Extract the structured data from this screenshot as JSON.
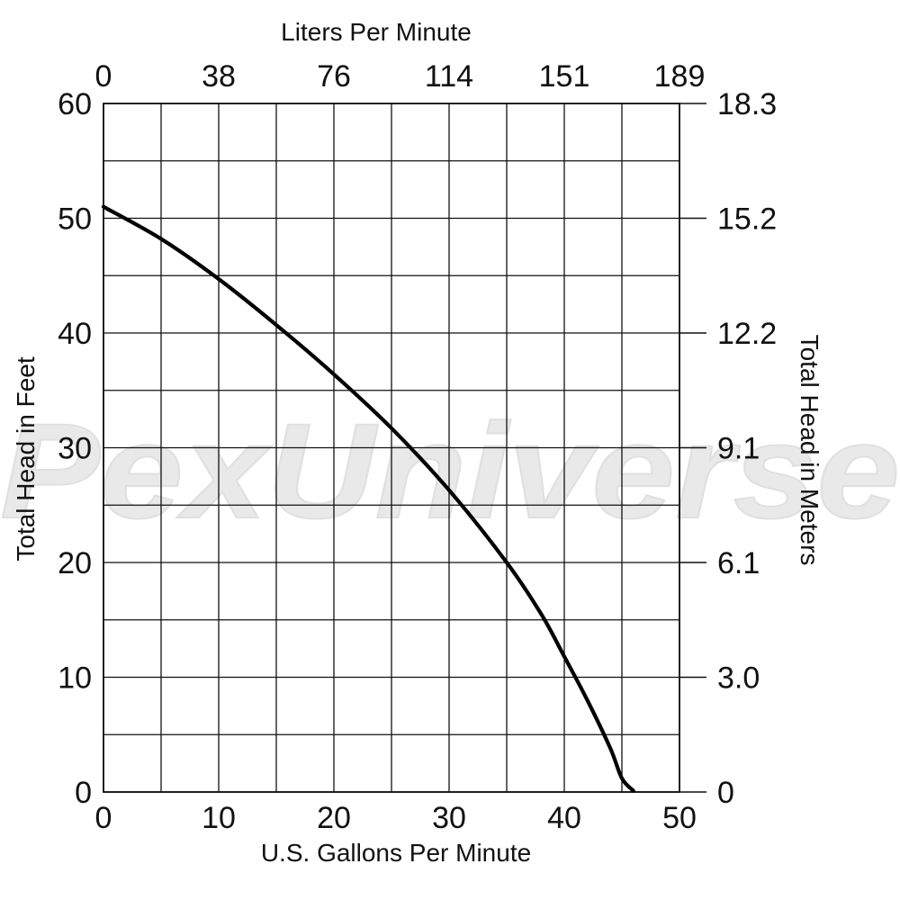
{
  "watermark": "PexUniverse",
  "chart_data": {
    "type": "line",
    "title": "",
    "xlabel": "U.S. Gallons Per Minute",
    "x2label": "Liters Per Minute",
    "ylabel": "Total Head in Feet",
    "y2label": "Total Head in Meters",
    "xlim": [
      0,
      50
    ],
    "ylim": [
      0,
      60
    ],
    "x_ticks": [
      "0",
      "10",
      "20",
      "30",
      "40",
      "50"
    ],
    "x2_ticks": [
      "0",
      "38",
      "76",
      "114",
      "151",
      "189"
    ],
    "y_ticks": [
      "0",
      "10",
      "20",
      "30",
      "40",
      "50",
      "60"
    ],
    "y2_ticks": [
      "0",
      "3.0",
      "6.1",
      "9.1",
      "12.2",
      "15.2",
      "18.3"
    ],
    "grid": true,
    "series": [
      {
        "color": "#000000",
        "x": [
          0,
          5,
          10,
          15,
          20,
          25,
          30,
          35,
          38,
          40,
          42,
          44,
          45,
          46
        ],
        "y": [
          51,
          48.2,
          44.7,
          40.7,
          36.4,
          31.7,
          26.3,
          20,
          15.5,
          11.8,
          8.0,
          3.8,
          1.2,
          0.1
        ]
      }
    ]
  }
}
